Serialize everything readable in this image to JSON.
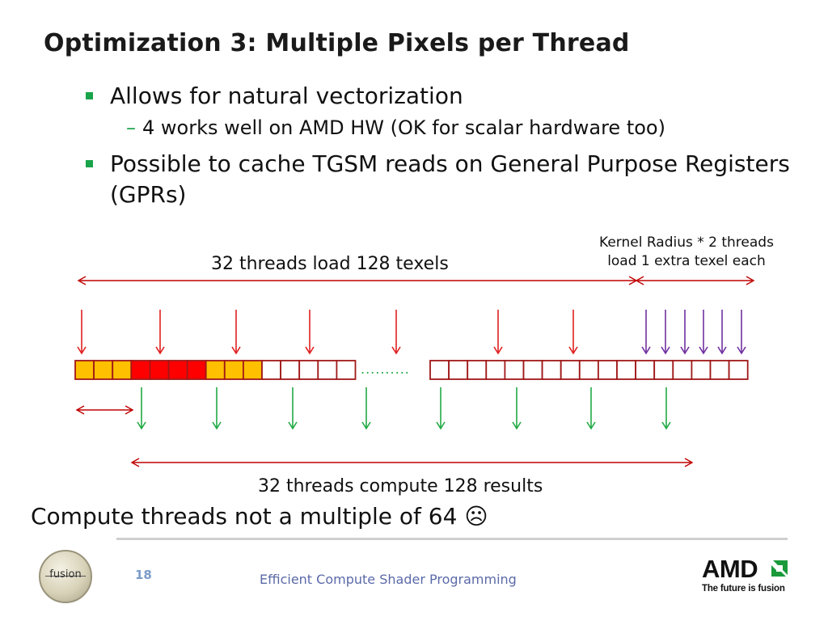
{
  "title": "Optimization 3: Multiple Pixels per Thread",
  "bullets": [
    {
      "text": "Allows for natural vectorization",
      "subitems": [
        "4 works well on AMD HW (OK for scalar hardware too)"
      ]
    },
    {
      "text": "Possible to cache TGSM reads on General Purpose Registers (GPRs)",
      "subitems": []
    }
  ],
  "sub_dash": "–",
  "diagram": {
    "load_label": "32 threads load 128 texels",
    "kernel_label_line1": "Kernel Radius * 2 threads",
    "kernel_label_line2": "load 1 extra texel each",
    "ellipsis": "..........",
    "compute_label": "32 threads compute 128 results",
    "colors": {
      "orange_cell": "#ffc000",
      "red_cell": "#ff0000",
      "cell_border": "#a01818",
      "load_arrow": "#e02020",
      "extra_arrow": "#7030a0",
      "compute_arrow": "#22aa44",
      "span_arrow": "#c00000",
      "dots": "#22aa44"
    }
  },
  "bottom_text": "Compute threads not a multiple of 64 ☹",
  "footer": {
    "page_number": "18",
    "presentation_title": "Efficient Compute Shader Programming",
    "fusion_logo_text": "fusion",
    "amd_logo_text": "AMD",
    "amd_tagline": "The future is fusion"
  }
}
